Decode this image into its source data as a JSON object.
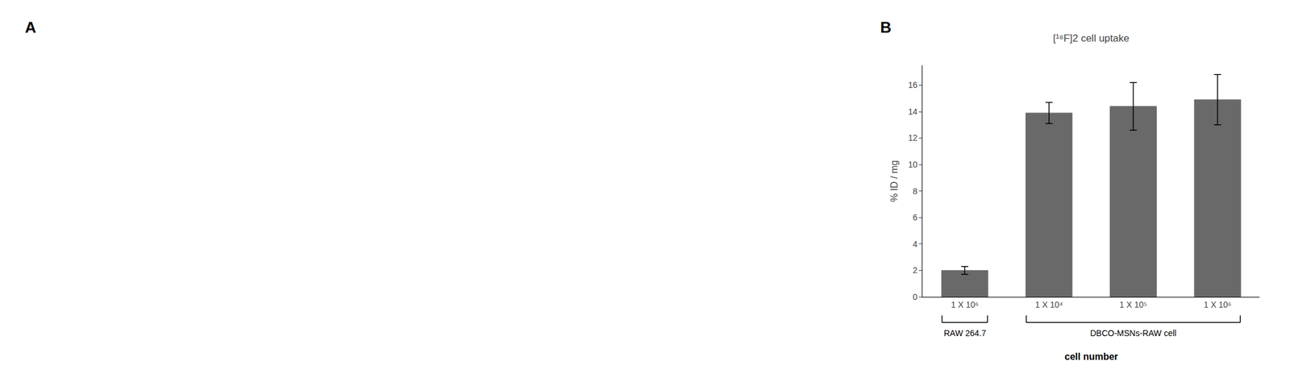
{
  "chart_data": {
    "type": "bar",
    "title": "[¹⁸F]2 cell uptake",
    "xlabel": "cell number",
    "ylabel": "% ID / mg",
    "categories": [
      "1 X 10⁶",
      "1 X 10⁴",
      "1 X 10⁵",
      "1 X 10⁶"
    ],
    "values": [
      2.0,
      13.9,
      14.4,
      14.9
    ],
    "errors": [
      0.3,
      0.8,
      1.8,
      1.9
    ],
    "color": "#696969",
    "ylim": [
      0,
      17.5
    ],
    "yticks": [
      0,
      2,
      4,
      6,
      8,
      10,
      12,
      14,
      16
    ],
    "grid": false,
    "annotations": [
      "A",
      "B",
      "RAW 264.7",
      "DBCO-MSNs-RAW cell"
    ]
  }
}
